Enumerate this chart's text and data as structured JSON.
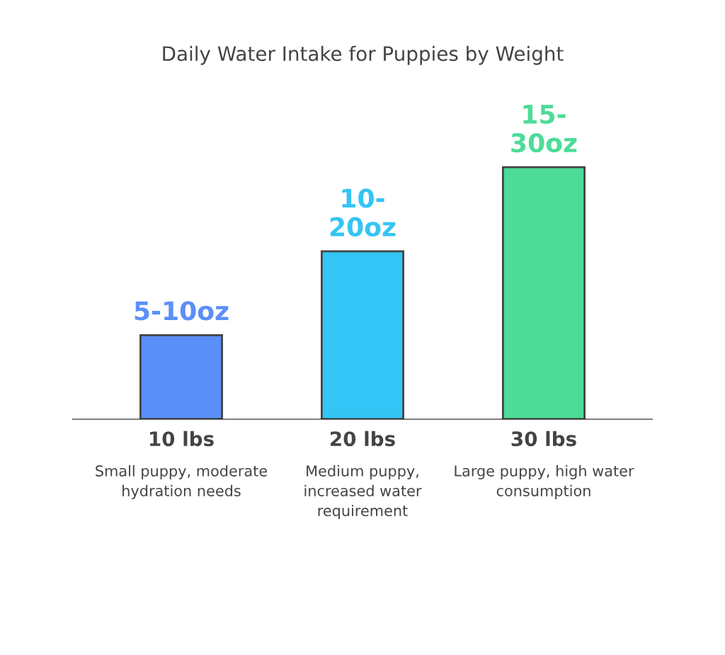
{
  "chart_data": {
    "type": "bar",
    "title": "Daily Water Intake for Puppies by Weight",
    "tick_labels": "x",
    "categories": [
      "10 lbs",
      "20 lbs",
      "30 lbs"
    ],
    "values": [
      10,
      20,
      30
    ],
    "colors": [
      "#5b8ff9",
      "#33c5f5",
      "#4ddc98"
    ],
    "value_labels": [
      "5-10oz",
      "10-\n20oz",
      "15-\n30oz"
    ],
    "annotations": [
      "Small puppy, moderate\nhydration needs",
      "Medium puppy,\nincreased water\nrequirement",
      "Large puppy, high water\nconsumption"
    ]
  }
}
